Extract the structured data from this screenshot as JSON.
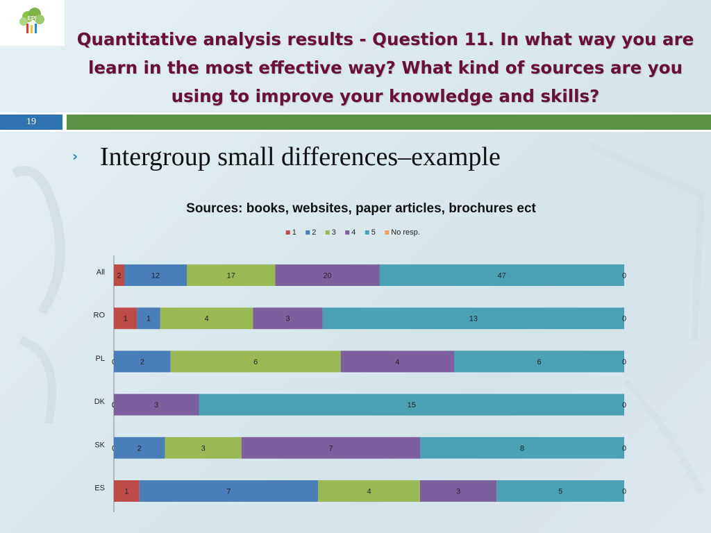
{
  "slide": {
    "title": "Quantitative analysis results - Question 11. In what way you are learn in the most effective way? What kind of sources are you using to improve your knowledge and skills?",
    "slide_number": "19",
    "bullet": "Intergroup small differences–example"
  },
  "logo": {
    "icon": "tree-logo-icon",
    "text": "EPI"
  },
  "chart_data": {
    "type": "bar",
    "orientation": "horizontal",
    "stacked": "percent",
    "title": "Sources: books, websites, paper articles, brochures ect",
    "legend_position": "top",
    "categories": [
      "All",
      "RO",
      "PL",
      "DK",
      "SK",
      "ES"
    ],
    "series": [
      {
        "name": "1",
        "color": "#be4b48",
        "values": [
          2,
          1,
          0,
          0,
          0,
          1
        ]
      },
      {
        "name": "2",
        "color": "#4a7ebb",
        "values": [
          12,
          1,
          2,
          0,
          2,
          7
        ]
      },
      {
        "name": "3",
        "color": "#98b954",
        "values": [
          17,
          4,
          6,
          0,
          3,
          4
        ]
      },
      {
        "name": "4",
        "color": "#7d5fa0",
        "values": [
          20,
          3,
          4,
          3,
          7,
          3
        ]
      },
      {
        "name": "5",
        "color": "#4aa0b5",
        "values": [
          47,
          13,
          6,
          15,
          8,
          5
        ]
      },
      {
        "name": "No resp.",
        "color": "#f59d56",
        "values": [
          0,
          0,
          0,
          0,
          0,
          0
        ]
      }
    ]
  }
}
